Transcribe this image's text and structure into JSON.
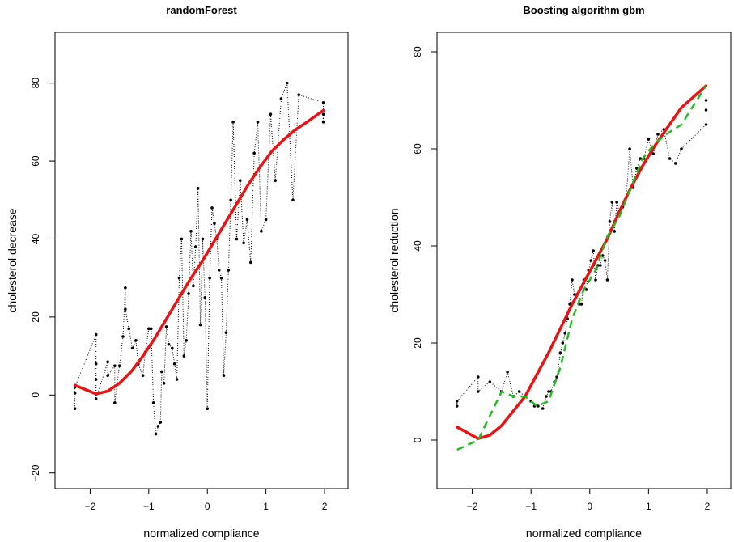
{
  "chart_data": [
    {
      "type": "scatter",
      "title": "randomForest",
      "xlabel": "normalized compliance",
      "ylabel": "cholesterol decrease",
      "xlim": [
        -2.6,
        2.4
      ],
      "ylim": [
        -24,
        93
      ],
      "xticks": [
        "-2",
        "-1",
        "0",
        "1",
        "2"
      ],
      "yticks": [
        "-20",
        "0",
        "20",
        "40",
        "60",
        "80"
      ],
      "series": [
        {
          "style": "points-dotted",
          "color": "#000000",
          "x": [
            -2.26,
            -2.26,
            -2.26,
            -1.9,
            -1.9,
            -1.9,
            -1.9,
            -1.7,
            -1.7,
            -1.58,
            -1.58,
            -1.5,
            -1.44,
            -1.4,
            -1.4,
            -1.34,
            -1.28,
            -1.22,
            -1.18,
            -1.1,
            -1.06,
            -1.0,
            -0.96,
            -0.92,
            -0.88,
            -0.84,
            -0.8,
            -0.78,
            -0.74,
            -0.7,
            -0.66,
            -0.6,
            -0.56,
            -0.52,
            -0.48,
            -0.44,
            -0.4,
            -0.36,
            -0.32,
            -0.28,
            -0.24,
            -0.2,
            -0.16,
            -0.12,
            -0.08,
            -0.04,
            0.0,
            0.04,
            0.08,
            0.12,
            0.16,
            0.2,
            0.24,
            0.28,
            0.32,
            0.36,
            0.4,
            0.44,
            0.5,
            0.56,
            0.62,
            0.68,
            0.74,
            0.8,
            0.86,
            0.92,
            1.0,
            1.08,
            1.16,
            1.26,
            1.36,
            1.46,
            1.56,
            1.98,
            1.98,
            1.98
          ],
          "y": [
            -3.5,
            0.5,
            2,
            15.5,
            8,
            4,
            -1,
            8.5,
            5,
            7.5,
            -2,
            7.5,
            15,
            27.5,
            22,
            17,
            12,
            14,
            8,
            5,
            11,
            17,
            17,
            -2,
            -10,
            -8,
            -7,
            6,
            3,
            17.5,
            13,
            12,
            8,
            4,
            30,
            40,
            10,
            14,
            26,
            42,
            28,
            38,
            53,
            18,
            40,
            25,
            -3.5,
            30,
            48,
            44,
            40,
            32,
            30,
            5,
            16,
            32,
            50,
            70,
            40,
            55,
            39,
            45,
            34,
            62,
            70,
            42,
            45,
            72,
            55,
            76,
            80,
            50,
            77,
            75,
            70,
            72
          ],
          "connect": "dotted"
        },
        {
          "style": "line",
          "color": "#ee1111",
          "x": [
            -2.26,
            -1.9,
            -1.7,
            -1.5,
            -1.3,
            -1.1,
            -0.9,
            -0.7,
            -0.5,
            -0.3,
            -0.1,
            0.1,
            0.3,
            0.5,
            0.7,
            0.9,
            1.1,
            1.3,
            1.5,
            1.7,
            1.98
          ],
          "y": [
            2.5,
            0.3,
            1,
            3,
            6,
            10,
            14.5,
            19.5,
            24.5,
            29.5,
            34,
            39,
            44,
            49,
            54,
            58.5,
            62.5,
            65.5,
            68,
            70,
            73
          ]
        }
      ]
    },
    {
      "type": "scatter",
      "title": "Boosting algorithm gbm",
      "xlabel": "normalized compliance",
      "ylabel": "cholesterol reduction",
      "xlim": [
        -2.6,
        2.4
      ],
      "ylim": [
        -10,
        84
      ],
      "xticks": [
        "-2",
        "-1",
        "0",
        "1",
        "2"
      ],
      "yticks": [
        "0",
        "20",
        "40",
        "60",
        "80"
      ],
      "series": [
        {
          "style": "points-dotted",
          "color": "#000000",
          "x": [
            -2.26,
            -2.26,
            -1.9,
            -1.9,
            -1.7,
            -1.5,
            -1.4,
            -1.3,
            -1.2,
            -1.1,
            -1.0,
            -0.94,
            -0.88,
            -0.8,
            -0.74,
            -0.7,
            -0.66,
            -0.6,
            -0.56,
            -0.5,
            -0.46,
            -0.42,
            -0.38,
            -0.34,
            -0.3,
            -0.26,
            -0.22,
            -0.18,
            -0.14,
            -0.1,
            -0.06,
            -0.02,
            0.02,
            0.06,
            0.1,
            0.14,
            0.18,
            0.22,
            0.26,
            0.3,
            0.34,
            0.38,
            0.42,
            0.46,
            0.5,
            0.56,
            0.62,
            0.68,
            0.74,
            0.8,
            0.86,
            0.92,
            1.0,
            1.08,
            1.16,
            1.26,
            1.36,
            1.46,
            1.56,
            1.98,
            1.98,
            1.98
          ],
          "y": [
            7,
            8,
            13,
            10,
            12,
            10,
            14,
            9,
            10,
            9,
            8,
            7,
            7,
            6.5,
            9,
            10,
            10,
            12,
            13,
            18,
            20,
            22,
            25,
            28,
            33,
            30,
            30,
            28,
            28,
            33,
            31,
            35,
            37,
            39,
            33,
            36,
            36,
            38,
            37,
            33,
            45,
            49,
            43,
            49,
            47,
            48,
            50,
            60,
            52,
            56,
            58,
            58,
            62,
            59,
            63,
            64,
            58,
            57,
            60,
            65,
            70,
            68
          ],
          "connect": "dotted"
        },
        {
          "style": "line",
          "color": "#ee1111",
          "x": [
            -2.26,
            -1.9,
            -1.7,
            -1.5,
            -1.3,
            -1.1,
            -0.9,
            -0.7,
            -0.5,
            -0.3,
            -0.1,
            0.1,
            0.3,
            0.5,
            0.7,
            0.9,
            1.1,
            1.3,
            1.56,
            1.98
          ],
          "y": [
            2.7,
            0.3,
            1,
            3,
            6,
            9,
            13.5,
            18,
            23,
            28,
            32.5,
            37,
            41.5,
            47,
            52,
            56.5,
            60.5,
            64,
            68.5,
            73
          ]
        },
        {
          "style": "dashed-line",
          "color": "#22bb22",
          "x": [
            -2.26,
            -1.9,
            -1.7,
            -1.5,
            -1.3,
            -1.1,
            -0.9,
            -0.7,
            -0.5,
            -0.3,
            -0.1,
            0.1,
            0.3,
            0.5,
            0.7,
            0.9,
            1.1,
            1.3,
            1.56,
            1.98
          ],
          "y": [
            -2,
            0,
            5,
            10,
            9,
            9,
            7,
            8,
            15,
            25,
            31,
            35,
            42,
            46,
            52,
            58,
            61,
            63,
            65,
            73
          ]
        }
      ]
    }
  ]
}
